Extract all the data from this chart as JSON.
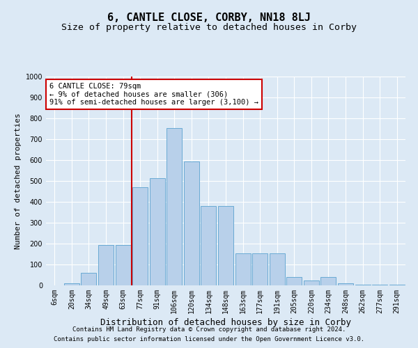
{
  "title": "6, CANTLE CLOSE, CORBY, NN18 8LJ",
  "subtitle": "Size of property relative to detached houses in Corby",
  "xlabel": "Distribution of detached houses by size in Corby",
  "ylabel": "Number of detached properties",
  "footnote1": "Contains HM Land Registry data © Crown copyright and database right 2024.",
  "footnote2": "Contains public sector information licensed under the Open Government Licence v3.0.",
  "annotation_line1": "6 CANTLE CLOSE: 79sqm",
  "annotation_line2": "← 9% of detached houses are smaller (306)",
  "annotation_line3": "91% of semi-detached houses are larger (3,100) →",
  "categories": [
    "6sqm",
    "20sqm",
    "34sqm",
    "49sqm",
    "63sqm",
    "77sqm",
    "91sqm",
    "106sqm",
    "120sqm",
    "134sqm",
    "148sqm",
    "163sqm",
    "177sqm",
    "191sqm",
    "205sqm",
    "220sqm",
    "234sqm",
    "248sqm",
    "262sqm",
    "277sqm",
    "291sqm"
  ],
  "values": [
    0,
    10,
    60,
    195,
    195,
    470,
    515,
    755,
    595,
    380,
    380,
    155,
    155,
    155,
    40,
    25,
    40,
    10,
    5,
    5,
    3
  ],
  "bar_color": "#b8d0ea",
  "bar_edge_color": "#6aaad4",
  "vline_x": 4.5,
  "vline_color": "#cc0000",
  "bg_color": "#dce9f5",
  "plot_bg_color": "#dce9f5",
  "grid_color": "#ffffff",
  "ylim": [
    0,
    1000
  ],
  "yticks": [
    0,
    100,
    200,
    300,
    400,
    500,
    600,
    700,
    800,
    900,
    1000
  ],
  "annotation_box_color": "#cc0000",
  "title_fontsize": 11,
  "subtitle_fontsize": 9.5,
  "xlabel_fontsize": 9,
  "ylabel_fontsize": 8,
  "tick_fontsize": 7,
  "annotation_fontsize": 7.5,
  "footnote_fontsize": 6.5
}
